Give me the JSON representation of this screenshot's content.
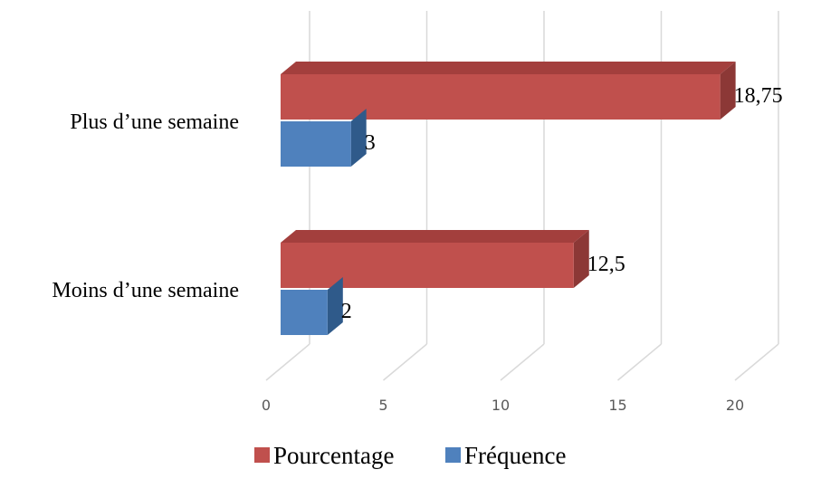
{
  "chart_data": {
    "type": "bar",
    "orientation": "horizontal",
    "style": "3d",
    "categories": [
      "Plus d’une semaine",
      "Moins d’une semaine"
    ],
    "series": [
      {
        "name": "Pourcentage",
        "values": [
          18.75,
          12.5
        ],
        "value_labels": [
          "18,75",
          "12,5"
        ],
        "color": "#C0504D",
        "side_color": "#8C3836",
        "top_color": "#A33F3D"
      },
      {
        "name": "Fréquence",
        "values": [
          3,
          2
        ],
        "value_labels": [
          "3",
          "2"
        ],
        "color": "#4F81BD",
        "side_color": "#2F5A8A",
        "top_color": "#3B6AA0"
      }
    ],
    "x_ticks": [
      "0",
      "5",
      "10",
      "15",
      "20"
    ],
    "xlim": [
      0,
      20
    ],
    "grid": true,
    "legend_position": "bottom",
    "title": "",
    "xlabel": "",
    "ylabel": ""
  }
}
